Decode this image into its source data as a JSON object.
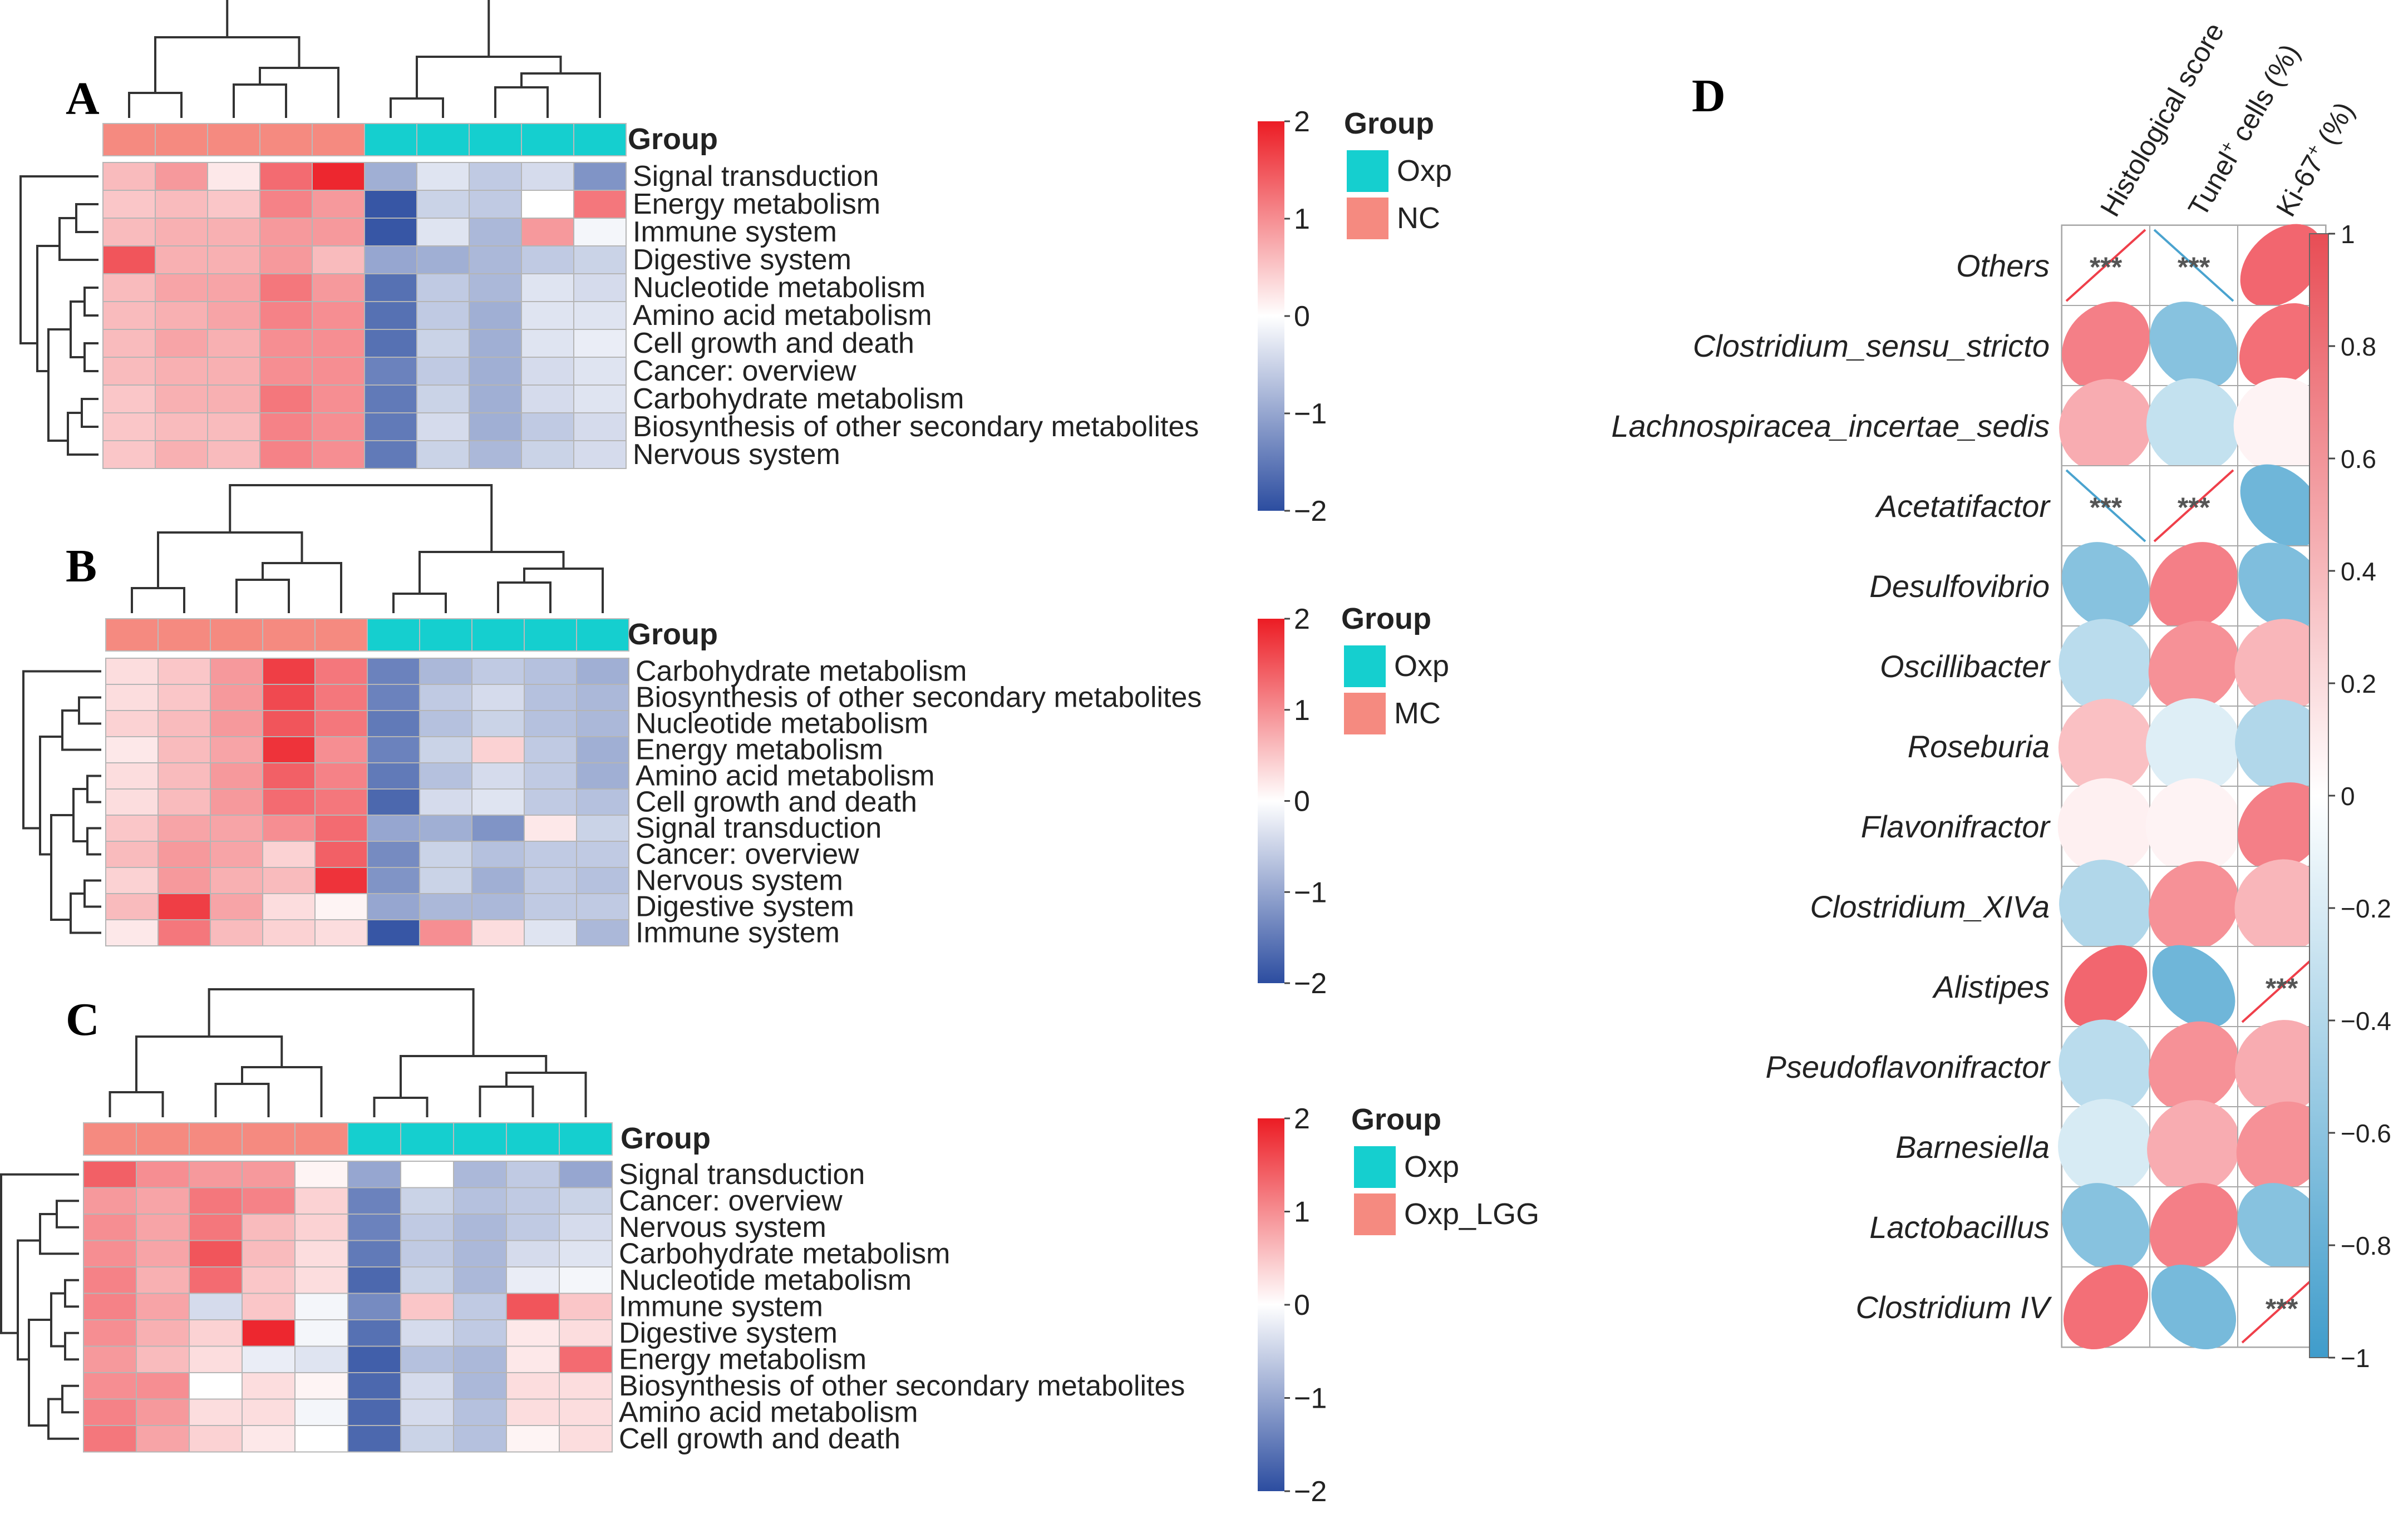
{
  "panels": [
    {
      "id": "A",
      "letter": "A"
    },
    {
      "id": "B",
      "letter": "B"
    },
    {
      "id": "C",
      "letter": "C"
    },
    {
      "id": "D",
      "letter": "D"
    }
  ],
  "colors": {
    "heat_low": "#2c4da0",
    "heat_mid": "#ffffff",
    "heat_high": "#ec1c24",
    "group_oxp": "#15cfcf",
    "group_other": "#f58a80",
    "corr_neg": "#4aa3cf",
    "corr_pos": "#ef3f4a",
    "sig_mark": "#555555"
  },
  "chart_data": [
    {
      "type": "heatmap",
      "panel": "A",
      "group_header": "Group",
      "legend_title": "Group",
      "groups": [
        {
          "name": "Oxp",
          "color": "#15cfcf"
        },
        {
          "name": "NC",
          "color": "#f58a80"
        }
      ],
      "column_groups": [
        "NC",
        "NC",
        "NC",
        "NC",
        "NC",
        "Oxp",
        "Oxp",
        "Oxp",
        "Oxp",
        "Oxp"
      ],
      "scale": {
        "min": -2,
        "max": 2,
        "ticks": [
          2,
          1,
          0,
          -1,
          -2
        ],
        "tick_labels": [
          "2",
          "1",
          "0",
          "−1",
          "−2"
        ]
      },
      "rows": [
        {
          "label": "Signal transduction",
          "values": [
            0.6,
            0.9,
            0.2,
            1.3,
            1.9,
            -0.9,
            -0.3,
            -0.6,
            -0.4,
            -1.2
          ]
        },
        {
          "label": "Energy metabolism",
          "values": [
            0.5,
            0.6,
            0.5,
            1.1,
            0.9,
            -1.9,
            -0.5,
            -0.6,
            0.0,
            1.2
          ]
        },
        {
          "label": "Immune system",
          "values": [
            0.6,
            0.7,
            0.7,
            0.9,
            0.9,
            -1.9,
            -0.3,
            -0.8,
            0.9,
            -0.1
          ]
        },
        {
          "label": "Digestive system",
          "values": [
            1.5,
            0.7,
            0.7,
            0.9,
            0.6,
            -1.0,
            -0.9,
            -0.8,
            -0.6,
            -0.5
          ]
        },
        {
          "label": "Nucleotide metabolism",
          "values": [
            0.6,
            0.8,
            0.8,
            1.2,
            0.9,
            -1.6,
            -0.6,
            -0.8,
            -0.3,
            -0.4
          ]
        },
        {
          "label": "Amino acid metabolism",
          "values": [
            0.6,
            0.7,
            0.8,
            1.1,
            1.0,
            -1.6,
            -0.6,
            -0.9,
            -0.3,
            -0.3
          ]
        },
        {
          "label": "Cell growth and death",
          "values": [
            0.6,
            0.8,
            0.7,
            1.0,
            1.0,
            -1.6,
            -0.5,
            -0.9,
            -0.3,
            -0.2
          ]
        },
        {
          "label": "Cancer: overview",
          "values": [
            0.6,
            0.7,
            0.7,
            1.0,
            1.0,
            -1.4,
            -0.6,
            -0.9,
            -0.4,
            -0.3
          ]
        },
        {
          "label": "Carbohydrate metabolism",
          "values": [
            0.5,
            0.7,
            0.7,
            1.2,
            1.0,
            -1.5,
            -0.5,
            -0.9,
            -0.4,
            -0.3
          ]
        },
        {
          "label": "Biosynthesis of other secondary metabolites",
          "values": [
            0.5,
            0.6,
            0.6,
            1.1,
            1.0,
            -1.5,
            -0.4,
            -0.9,
            -0.6,
            -0.4
          ]
        },
        {
          "label": "Nervous system",
          "values": [
            0.5,
            0.7,
            0.6,
            1.1,
            1.0,
            -1.5,
            -0.5,
            -0.8,
            -0.5,
            -0.4
          ]
        }
      ]
    },
    {
      "type": "heatmap",
      "panel": "B",
      "group_header": "Group",
      "legend_title": "Group",
      "groups": [
        {
          "name": "Oxp",
          "color": "#15cfcf"
        },
        {
          "name": "MC",
          "color": "#f58a80"
        }
      ],
      "column_groups": [
        "MC",
        "MC",
        "MC",
        "MC",
        "MC",
        "Oxp",
        "Oxp",
        "Oxp",
        "Oxp",
        "Oxp"
      ],
      "scale": {
        "min": -2,
        "max": 2,
        "ticks": [
          2,
          1,
          0,
          -1,
          -2
        ],
        "tick_labels": [
          "2",
          "1",
          "0",
          "−1",
          "−2"
        ]
      },
      "rows": [
        {
          "label": "Carbohydrate metabolism",
          "values": [
            0.3,
            0.5,
            0.9,
            1.7,
            1.2,
            -1.4,
            -0.8,
            -0.6,
            -0.7,
            -0.9
          ]
        },
        {
          "label": "Biosynthesis of other secondary metabolites",
          "values": [
            0.3,
            0.5,
            0.9,
            1.6,
            1.2,
            -1.4,
            -0.6,
            -0.4,
            -0.7,
            -0.8
          ]
        },
        {
          "label": "Nucleotide metabolism",
          "values": [
            0.4,
            0.6,
            0.9,
            1.5,
            1.2,
            -1.5,
            -0.7,
            -0.5,
            -0.7,
            -0.8
          ]
        },
        {
          "label": "Energy metabolism",
          "values": [
            0.2,
            0.6,
            0.8,
            1.8,
            1.0,
            -1.4,
            -0.5,
            0.4,
            -0.6,
            -0.9
          ]
        },
        {
          "label": "Amino acid metabolism",
          "values": [
            0.3,
            0.6,
            0.9,
            1.4,
            1.1,
            -1.5,
            -0.7,
            -0.4,
            -0.6,
            -0.9
          ]
        },
        {
          "label": "Cell growth and death",
          "values": [
            0.3,
            0.6,
            0.9,
            1.3,
            1.2,
            -1.7,
            -0.4,
            -0.3,
            -0.6,
            -0.7
          ]
        },
        {
          "label": "Signal transduction",
          "values": [
            0.5,
            0.8,
            0.8,
            1.0,
            1.3,
            -1.0,
            -0.9,
            -1.2,
            0.2,
            -0.5
          ]
        },
        {
          "label": "Cancer: overview",
          "values": [
            0.6,
            0.9,
            0.8,
            0.4,
            1.4,
            -1.3,
            -0.5,
            -0.7,
            -0.6,
            -0.6
          ]
        },
        {
          "label": "Nervous system",
          "values": [
            0.4,
            0.9,
            0.7,
            0.6,
            1.8,
            -1.2,
            -0.5,
            -0.9,
            -0.6,
            -0.7
          ]
        },
        {
          "label": "Digestive system",
          "values": [
            0.6,
            1.7,
            0.8,
            0.3,
            0.1,
            -1.0,
            -0.8,
            -0.8,
            -0.6,
            -0.6
          ]
        },
        {
          "label": "Immune system",
          "values": [
            0.2,
            1.2,
            0.6,
            0.4,
            0.3,
            -1.9,
            1.0,
            0.3,
            -0.3,
            -0.8
          ]
        }
      ]
    },
    {
      "type": "heatmap",
      "panel": "C",
      "group_header": "Group",
      "legend_title": "Group",
      "groups": [
        {
          "name": "Oxp",
          "color": "#15cfcf"
        },
        {
          "name": "Oxp_LGG",
          "color": "#f58a80"
        }
      ],
      "column_groups": [
        "Oxp_LGG",
        "Oxp_LGG",
        "Oxp_LGG",
        "Oxp_LGG",
        "Oxp_LGG",
        "Oxp",
        "Oxp",
        "Oxp",
        "Oxp",
        "Oxp"
      ],
      "scale": {
        "min": -2,
        "max": 2,
        "ticks": [
          2,
          1,
          0,
          -1,
          -2
        ],
        "tick_labels": [
          "2",
          "1",
          "0",
          "−1",
          "−2"
        ]
      },
      "rows": [
        {
          "label": "Signal transduction",
          "values": [
            1.4,
            1.0,
            0.9,
            0.9,
            0.1,
            -1.0,
            0.0,
            -0.8,
            -0.6,
            -1.0
          ]
        },
        {
          "label": "Cancer: overview",
          "values": [
            0.9,
            0.8,
            1.2,
            1.1,
            0.4,
            -1.4,
            -0.5,
            -0.7,
            -0.6,
            -0.5
          ]
        },
        {
          "label": "Nervous system",
          "values": [
            1.0,
            0.8,
            1.2,
            0.6,
            0.4,
            -1.4,
            -0.6,
            -0.8,
            -0.6,
            -0.4
          ]
        },
        {
          "label": "Carbohydrate metabolism",
          "values": [
            1.0,
            0.8,
            1.5,
            0.6,
            0.3,
            -1.5,
            -0.6,
            -0.8,
            -0.4,
            -0.3
          ]
        },
        {
          "label": "Nucleotide metabolism",
          "values": [
            1.1,
            0.7,
            1.3,
            0.5,
            0.3,
            -1.7,
            -0.5,
            -0.8,
            -0.2,
            -0.1
          ]
        },
        {
          "label": "Immune system",
          "values": [
            1.1,
            0.8,
            -0.4,
            0.5,
            -0.1,
            -1.3,
            0.5,
            -0.6,
            1.5,
            0.5
          ]
        },
        {
          "label": "Digestive system",
          "values": [
            1.0,
            0.7,
            0.4,
            1.9,
            -0.1,
            -1.6,
            -0.4,
            -0.6,
            0.2,
            0.3
          ]
        },
        {
          "label": "Energy metabolism",
          "values": [
            0.9,
            0.6,
            0.3,
            -0.2,
            -0.3,
            -1.8,
            -0.7,
            -0.8,
            0.2,
            1.3
          ]
        },
        {
          "label": "Biosynthesis of other secondary metabolites",
          "values": [
            1.0,
            1.0,
            0.0,
            0.3,
            0.1,
            -1.7,
            -0.4,
            -0.8,
            0.3,
            0.3
          ]
        },
        {
          "label": "Amino acid metabolism",
          "values": [
            1.1,
            0.9,
            0.3,
            0.3,
            -0.1,
            -1.7,
            -0.4,
            -0.7,
            0.3,
            0.3
          ]
        },
        {
          "label": "Cell growth and death",
          "values": [
            1.2,
            0.8,
            0.4,
            0.2,
            0.0,
            -1.7,
            -0.5,
            -0.7,
            0.1,
            0.3
          ]
        }
      ]
    },
    {
      "type": "heatmap",
      "subtype": "correlation-ellipse",
      "panel": "D",
      "columns": [
        {
          "label": "Histological score"
        },
        {
          "label": "Tunel",
          "superscript": "+",
          "suffix": " cells (%)"
        },
        {
          "label": "Ki-67",
          "superscript": "+",
          "suffix": " (%)"
        }
      ],
      "scale": {
        "min": -1,
        "max": 1,
        "ticks": [
          1,
          0.8,
          0.6,
          0.4,
          0.2,
          0,
          -0.2,
          -0.4,
          -0.6,
          -0.8,
          -1
        ],
        "tick_labels": [
          "1",
          "0.8",
          "0.6",
          "0.4",
          "0.2",
          "0",
          "−0.2",
          "−0.4",
          "−0.6",
          "−0.8",
          "−1"
        ]
      },
      "significance_label": "***",
      "rows": [
        {
          "label": "Others",
          "values": [
            1.0,
            -1.0,
            0.75
          ],
          "sig": [
            true,
            true,
            false
          ]
        },
        {
          "label": "Clostridium_sensu_stricto",
          "values": [
            0.6,
            -0.6,
            0.7
          ],
          "sig": [
            false,
            false,
            false
          ]
        },
        {
          "label": "Lachnospiracea_incertae_sedis",
          "values": [
            0.35,
            -0.25,
            0.03
          ],
          "sig": [
            false,
            false,
            false
          ]
        },
        {
          "label": "Acetatifactor",
          "values": [
            -1.0,
            1.0,
            -0.75
          ],
          "sig": [
            true,
            true,
            false
          ]
        },
        {
          "label": "Desulfovibrio",
          "values": [
            -0.6,
            0.6,
            -0.65
          ],
          "sig": [
            false,
            false,
            false
          ]
        },
        {
          "label": "Oscillibacter",
          "values": [
            -0.3,
            0.5,
            0.3
          ],
          "sig": [
            false,
            false,
            false
          ]
        },
        {
          "label": "Roseburia",
          "values": [
            0.25,
            -0.12,
            -0.35
          ],
          "sig": [
            false,
            false,
            false
          ]
        },
        {
          "label": "Flavonifractor",
          "values": [
            0.04,
            0.03,
            0.6
          ],
          "sig": [
            false,
            false,
            false
          ]
        },
        {
          "label": "Clostridium_XIVa",
          "values": [
            -0.35,
            0.5,
            0.3
          ],
          "sig": [
            false,
            false,
            false
          ]
        },
        {
          "label": "Alistipes",
          "values": [
            0.75,
            -0.75,
            1.0
          ],
          "sig": [
            false,
            false,
            true
          ]
        },
        {
          "label": "Pseudoflavonifractor",
          "values": [
            -0.3,
            0.5,
            0.35
          ],
          "sig": [
            false,
            false,
            false
          ]
        },
        {
          "label": "Barnesiella",
          "values": [
            -0.15,
            0.35,
            0.5
          ],
          "sig": [
            false,
            false,
            false
          ]
        },
        {
          "label": "Lactobacillus",
          "values": [
            -0.6,
            0.6,
            -0.6
          ],
          "sig": [
            false,
            false,
            false
          ]
        },
        {
          "label": "Clostridium IV",
          "values": [
            0.7,
            -0.7,
            1.0
          ],
          "sig": [
            false,
            false,
            true
          ]
        }
      ]
    }
  ]
}
